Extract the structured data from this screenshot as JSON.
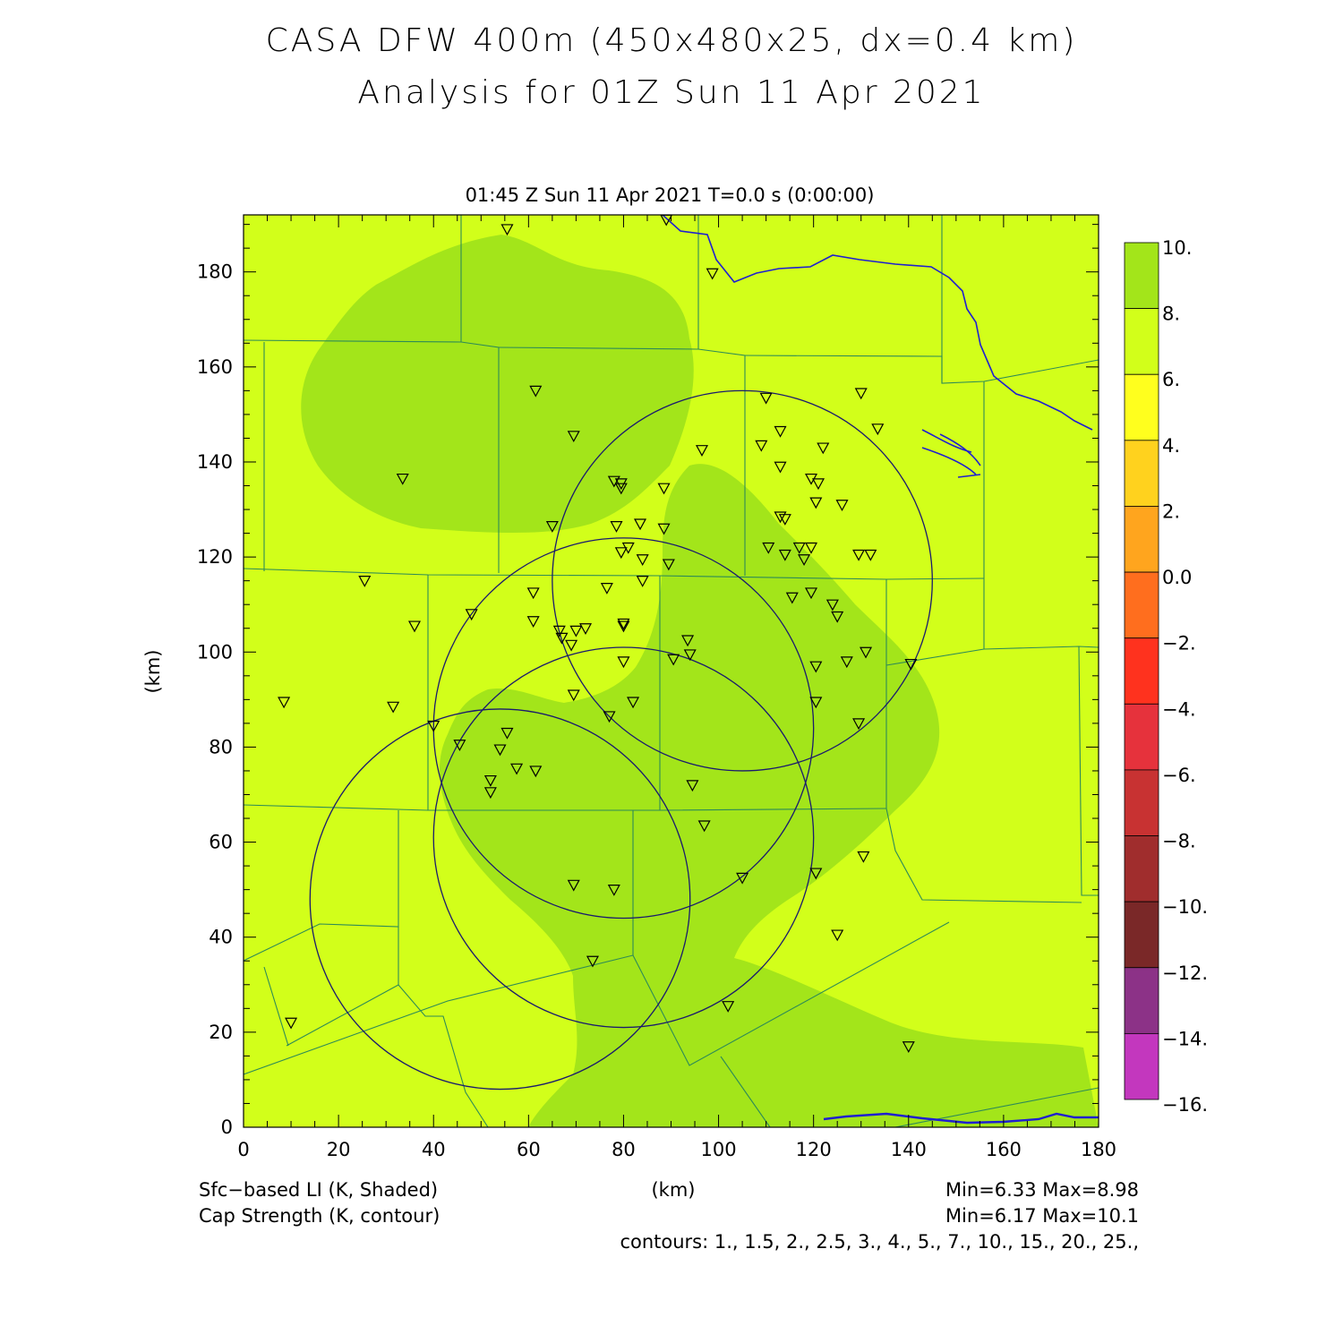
{
  "title": {
    "line1": "CASA DFW 400m (450x480x25, dx=0.4 km)",
    "line2": "Analysis for 01Z Sun 11 Apr 2021"
  },
  "valid_time": "01:45 Z Sun 11 Apr 2021    T=0.0 s (0:00:00)",
  "axes": {
    "xlabel": "(km)",
    "ylabel": "(km)",
    "xlim": [
      0,
      180
    ],
    "ylim": [
      0,
      192
    ],
    "xticks": [
      "0",
      "20",
      "40",
      "60",
      "80",
      "100",
      "120",
      "140",
      "160",
      "180"
    ],
    "yticks": [
      "0",
      "20",
      "40",
      "60",
      "80",
      "100",
      "120",
      "140",
      "160",
      "180"
    ]
  },
  "colorbar": {
    "labels": [
      "10.",
      "8.",
      "6.",
      "4.",
      "2.",
      "0.0",
      "−2.",
      "−4.",
      "−6.",
      "−8.",
      "−10.",
      "−12.",
      "−14.",
      "−16."
    ],
    "colors": [
      "#a3e51a",
      "#d2ff1a",
      "#ffff1e",
      "#ffd21e",
      "#ffa51e",
      "#ff6e1e",
      "#ff321e",
      "#e6323c",
      "#c83232",
      "#a02d2d",
      "#7a2828",
      "#8c3287",
      "#c337be",
      "#dc3cdc"
    ]
  },
  "footer": {
    "field1": "Sfc−based LI (K, Shaded)",
    "field2": "Cap Strength (K, contour)",
    "stats1": "Min=6.33 Max=8.98",
    "stats2": "Min=6.17 Max=10.1",
    "contours": "contours: 1., 1.5, 2., 2.5, 3., 4., 5., 7., 10., 15., 20., 25.,"
  },
  "colors": {
    "background_field": "#d2ff1a",
    "high_li_field": "#a3e51a",
    "county_lines": "#2e8b57",
    "radar_rings": "#1a1a6e",
    "water": "#1f1fd0"
  },
  "chart_data": {
    "type": "map",
    "radar_rings": [
      {
        "center_km": [
          105,
          115
        ],
        "radius_km": 40
      },
      {
        "center_km": [
          80,
          84
        ],
        "radius_km": 40
      },
      {
        "center_km": [
          80,
          61
        ],
        "radius_km": 40
      },
      {
        "center_km": [
          54,
          48
        ],
        "radius_km": 40
      }
    ],
    "stations_km": [
      [
        55.5,
        189
      ],
      [
        89,
        191
      ],
      [
        98.7,
        179.7
      ],
      [
        61.5,
        155
      ],
      [
        69.5,
        145.5
      ],
      [
        33.5,
        136.5
      ],
      [
        110,
        153.5
      ],
      [
        130,
        154.5
      ],
      [
        133.5,
        147
      ],
      [
        113,
        146.5
      ],
      [
        109,
        143.5
      ],
      [
        122,
        143
      ],
      [
        96.5,
        142.5
      ],
      [
        113,
        139
      ],
      [
        119.5,
        136.5
      ],
      [
        121,
        135.5
      ],
      [
        78,
        136
      ],
      [
        79.5,
        134.5
      ],
      [
        79.5,
        135.5
      ],
      [
        88.5,
        134.5
      ],
      [
        120.5,
        131.5
      ],
      [
        126,
        131
      ],
      [
        113,
        128.5
      ],
      [
        114,
        128
      ],
      [
        65,
        126.5
      ],
      [
        78.5,
        126.5
      ],
      [
        83.5,
        127
      ],
      [
        88.5,
        126
      ],
      [
        110.5,
        122
      ],
      [
        117,
        122
      ],
      [
        119.5,
        122
      ],
      [
        114,
        120.5
      ],
      [
        118,
        119.5
      ],
      [
        81,
        122
      ],
      [
        79.5,
        121
      ],
      [
        84,
        119.5
      ],
      [
        89.5,
        118.5
      ],
      [
        129.5,
        120.5
      ],
      [
        132,
        120.5
      ],
      [
        84,
        115
      ],
      [
        25.5,
        115
      ],
      [
        76.5,
        113.5
      ],
      [
        61,
        112.5
      ],
      [
        115.5,
        111.5
      ],
      [
        119.5,
        112.5
      ],
      [
        124,
        110
      ],
      [
        125,
        107.5
      ],
      [
        48,
        108
      ],
      [
        61,
        106.5
      ],
      [
        36,
        105.5
      ],
      [
        80,
        106
      ],
      [
        80,
        105.5
      ],
      [
        72,
        105
      ],
      [
        70,
        104.5
      ],
      [
        66.5,
        104.5
      ],
      [
        67,
        103
      ],
      [
        69,
        101.5
      ],
      [
        93.5,
        102.5
      ],
      [
        94,
        99.5
      ],
      [
        90.5,
        98.5
      ],
      [
        80,
        98
      ],
      [
        120.5,
        97
      ],
      [
        127,
        98
      ],
      [
        131,
        100
      ],
      [
        140.5,
        97.5
      ],
      [
        69.5,
        91
      ],
      [
        8.5,
        89.5
      ],
      [
        31.5,
        88.5
      ],
      [
        82,
        89.5
      ],
      [
        120.5,
        89.5
      ],
      [
        77,
        86.5
      ],
      [
        40,
        84.5
      ],
      [
        55.5,
        83
      ],
      [
        129.5,
        85
      ],
      [
        45.5,
        80.5
      ],
      [
        54,
        79.5
      ],
      [
        57.5,
        75.5
      ],
      [
        61.5,
        75
      ],
      [
        52,
        73
      ],
      [
        52,
        70.5
      ],
      [
        94.5,
        72
      ],
      [
        97,
        63.5
      ],
      [
        130.5,
        57
      ],
      [
        120.5,
        53.5
      ],
      [
        105,
        52.5
      ],
      [
        69.5,
        51
      ],
      [
        78,
        50
      ],
      [
        125,
        40.5
      ],
      [
        73.5,
        35
      ],
      [
        10,
        22
      ],
      [
        102,
        25.5
      ],
      [
        140,
        17
      ]
    ]
  }
}
